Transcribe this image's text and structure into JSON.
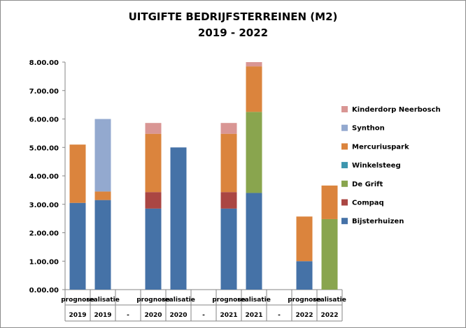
{
  "chart_data": {
    "type": "bar",
    "stacked": true,
    "title": "UITGIFTE BEDRIJFSTERREINEN (M2)",
    "subtitle": "2019 - 2022",
    "ylim": [
      0,
      8
    ],
    "yticks": [
      "0.00.00",
      "1.00.00",
      "2.00.00",
      "3.00.00",
      "4.00.00",
      "5.00.00",
      "6.00.00",
      "7.00.00",
      "8.00.00"
    ],
    "grid": false,
    "legend_position": "right",
    "categories": [
      {
        "label": "prognose",
        "year": "2019"
      },
      {
        "label": "realisatie",
        "year": "2019"
      },
      {
        "label": "",
        "year": "-"
      },
      {
        "label": "prognose",
        "year": "2020"
      },
      {
        "label": "realisatie",
        "year": "2020"
      },
      {
        "label": "",
        "year": "-"
      },
      {
        "label": "prognose",
        "year": "2021"
      },
      {
        "label": "realisatie",
        "year": "2021"
      },
      {
        "label": "",
        "year": "-"
      },
      {
        "label": "prognose",
        "year": "2022"
      },
      {
        "label": "realisatie",
        "year": "2022"
      }
    ],
    "series": [
      {
        "name": "Bijsterhuizen",
        "color": "#4572a7",
        "values": [
          3.05,
          3.15,
          0,
          2.85,
          5.0,
          0,
          2.85,
          3.4,
          0,
          1.0,
          0
        ]
      },
      {
        "name": "Compaq",
        "color": "#aa4643",
        "values": [
          0,
          0,
          0,
          0.58,
          0,
          0,
          0.58,
          0,
          0,
          0,
          0
        ]
      },
      {
        "name": "De Grift",
        "color": "#89a54e",
        "values": [
          0,
          0,
          0,
          0,
          0,
          0,
          0,
          2.85,
          0,
          0,
          2.48
        ]
      },
      {
        "name": "Winkelsteeg",
        "color": "#3d96ae",
        "values": [
          0,
          0,
          0,
          0,
          0,
          0,
          0,
          0,
          0,
          0,
          0
        ]
      },
      {
        "name": "Mercuriuspark",
        "color": "#db843d",
        "values": [
          2.05,
          0.3,
          0,
          2.05,
          0,
          0,
          2.05,
          1.6,
          0,
          1.57,
          1.18
        ]
      },
      {
        "name": "Synthon",
        "color": "#93a9cf",
        "values": [
          0,
          2.55,
          0,
          0,
          0,
          0,
          0,
          0,
          0,
          0,
          0
        ]
      },
      {
        "name": "Kinderdorp Neerbosch",
        "color": "#d99694",
        "values": [
          0,
          0,
          0,
          0.38,
          0,
          0,
          0.38,
          0.15,
          0,
          0,
          0
        ]
      }
    ]
  }
}
